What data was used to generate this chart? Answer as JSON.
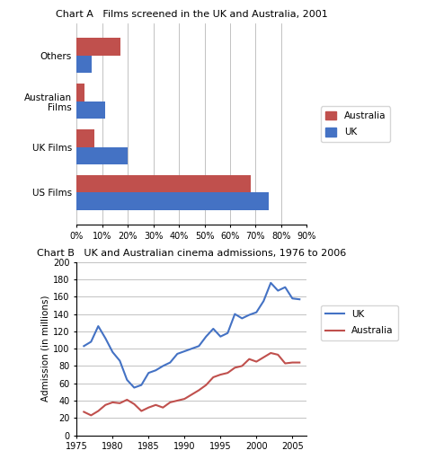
{
  "chart_a": {
    "title": "Chart A   Films screened in the UK and Australia, 2001",
    "categories": [
      "US Films",
      "UK Films",
      "Australian\nFilms",
      "Others"
    ],
    "australia": [
      68,
      7,
      3,
      17
    ],
    "uk": [
      75,
      20,
      11,
      6
    ],
    "colors": {
      "australia": "#C0504D",
      "uk": "#4472C4"
    },
    "xlim": [
      0,
      90
    ],
    "xticks": [
      0,
      10,
      20,
      30,
      40,
      50,
      60,
      70,
      80,
      90
    ],
    "xticklabels": [
      "0%",
      "10%",
      "20%",
      "30%",
      "40%",
      "50%",
      "60%",
      "70%",
      "80%",
      "90%"
    ]
  },
  "chart_b": {
    "title": "Chart B   UK and Australian cinema admissions, 1976 to 2006",
    "ylabel": "Admission (in millions)",
    "ylim": [
      0,
      200
    ],
    "yticks": [
      0,
      20,
      40,
      60,
      80,
      100,
      120,
      140,
      160,
      180,
      200
    ],
    "xlim": [
      1975,
      2007
    ],
    "xticks": [
      1975,
      1980,
      1985,
      1990,
      1995,
      2000,
      2005
    ],
    "uk_x": [
      1976,
      1977,
      1978,
      1979,
      1980,
      1981,
      1982,
      1983,
      1984,
      1985,
      1986,
      1987,
      1988,
      1989,
      1990,
      1991,
      1992,
      1993,
      1994,
      1995,
      1996,
      1997,
      1998,
      1999,
      2000,
      2001,
      2002,
      2003,
      2004,
      2005,
      2006
    ],
    "uk_y": [
      103,
      108,
      126,
      112,
      96,
      86,
      64,
      55,
      58,
      72,
      75,
      80,
      84,
      94,
      97,
      100,
      103,
      114,
      123,
      114,
      118,
      140,
      135,
      139,
      142,
      155,
      176,
      167,
      171,
      158,
      157
    ],
    "aus_x": [
      1976,
      1977,
      1978,
      1979,
      1980,
      1981,
      1982,
      1983,
      1984,
      1985,
      1986,
      1987,
      1988,
      1989,
      1990,
      1991,
      1992,
      1993,
      1994,
      1995,
      1996,
      1997,
      1998,
      1999,
      2000,
      2001,
      2002,
      2003,
      2004,
      2005,
      2006
    ],
    "aus_y": [
      27,
      23,
      28,
      35,
      38,
      37,
      41,
      36,
      28,
      32,
      35,
      32,
      38,
      40,
      42,
      47,
      52,
      58,
      67,
      70,
      72,
      78,
      80,
      88,
      85,
      90,
      95,
      93,
      83,
      84,
      84
    ],
    "colors": {
      "uk": "#4472C4",
      "australia": "#C0504D"
    }
  },
  "bg_color": "#FFFFFF"
}
